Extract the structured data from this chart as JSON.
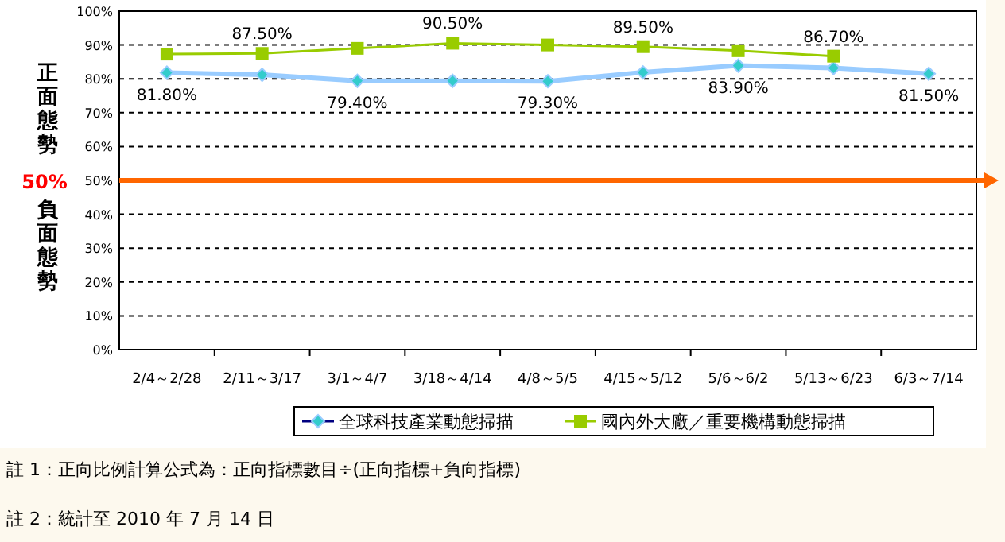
{
  "chart_data": {
    "type": "line",
    "categories": [
      "2/4～2/28",
      "2/11～3/17",
      "3/1～4/7",
      "3/18～4/14",
      "4/8～5/5",
      "4/15～5/12",
      "5/6～6/2",
      "5/13～6/23",
      "6/3～7/14"
    ],
    "series": [
      {
        "name": "全球科技產業動態掃描",
        "color": "#99ccff",
        "marker": "diamond",
        "values": [
          81.8,
          81.2,
          79.4,
          79.4,
          79.3,
          81.9,
          83.9,
          83.2,
          81.5
        ],
        "value_labels": [
          "81.80%",
          null,
          "79.40%",
          null,
          "79.30%",
          null,
          "83.90%",
          null,
          "81.50%"
        ]
      },
      {
        "name": "國內外大廠／重要機構動態掃描",
        "color": "#99cc00",
        "marker": "square",
        "values": [
          87.3,
          87.5,
          89.0,
          90.5,
          90.0,
          89.5,
          88.3,
          86.7,
          null
        ],
        "value_labels": [
          null,
          "87.50%",
          null,
          "90.50%",
          null,
          "89.50%",
          null,
          "86.70%",
          null
        ]
      }
    ],
    "ylim": [
      0,
      100
    ],
    "yticks": [
      {
        "value": 0,
        "label": "0%"
      },
      {
        "value": 10,
        "label": "10%"
      },
      {
        "value": 20,
        "label": "20%"
      },
      {
        "value": 30,
        "label": "30%"
      },
      {
        "value": 40,
        "label": "40%"
      },
      {
        "value": 50,
        "label": "50%"
      },
      {
        "value": 60,
        "label": "60%"
      },
      {
        "value": 70,
        "label": "70%"
      },
      {
        "value": 80,
        "label": "80%"
      },
      {
        "value": 90,
        "label": "90%"
      },
      {
        "value": 100,
        "label": "100%"
      }
    ],
    "grid": "y",
    "legend": "bottom",
    "ref_lines": [
      {
        "axis": "y",
        "value": 50,
        "label": "50%",
        "color": "#ff6600"
      }
    ],
    "annotations": [
      "正面態勢",
      "負面態勢",
      "註 1：正向比例計算公式為：正向指標數目÷(正向指標+負向指標)",
      "註 2：統計至 2010 年 7 月 14 日"
    ]
  }
}
